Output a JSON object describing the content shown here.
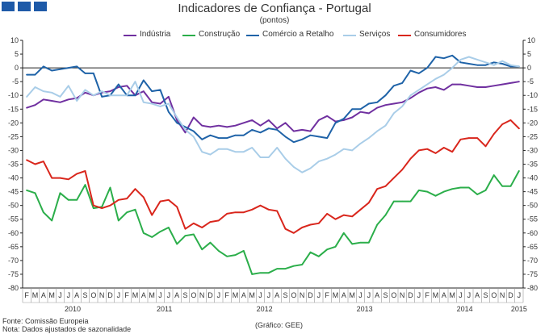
{
  "chart_data": {
    "type": "line",
    "title": "Indicadores de Confiança - Portugal",
    "subtitle": "(pontos)",
    "ylim": [
      -80,
      10
    ],
    "yticks": [
      10,
      5,
      0,
      -5,
      -10,
      -15,
      -20,
      -25,
      -30,
      -35,
      -40,
      -45,
      -50,
      -55,
      -60,
      -65,
      -70,
      -75,
      -80
    ],
    "month_labels": [
      "F",
      "M",
      "A",
      "M",
      "J",
      "J",
      "A",
      "S",
      "O",
      "N",
      "D",
      "J",
      "F",
      "M",
      "A",
      "M",
      "J",
      "J",
      "A",
      "S",
      "O",
      "N",
      "D",
      "J",
      "F",
      "M",
      "A",
      "M",
      "J",
      "J",
      "A",
      "S",
      "O",
      "N",
      "D",
      "J",
      "F",
      "M",
      "A",
      "M",
      "J",
      "J",
      "A",
      "S",
      "O",
      "N",
      "D",
      "J",
      "F",
      "M",
      "A",
      "M",
      "J",
      "J",
      "A",
      "S",
      "O",
      "N",
      "D",
      "J"
    ],
    "year_labels": [
      {
        "label": "2010",
        "index": 5.5
      },
      {
        "label": "2011",
        "index": 16.5
      },
      {
        "label": "2012",
        "index": 28.5
      },
      {
        "label": "2013",
        "index": 40.5
      },
      {
        "label": "2014",
        "index": 52.5
      },
      {
        "label": "2015",
        "index": 59
      }
    ],
    "series": [
      {
        "name": "Indústria",
        "color": "#7030a0",
        "values": [
          -14.5,
          -13.5,
          -11.5,
          -12,
          -12.5,
          -11.5,
          -11,
          -9,
          -10,
          -9,
          -8.5,
          -7,
          -6.5,
          -10,
          -8.5,
          -12.5,
          -13,
          -10.5,
          -19,
          -23.5,
          -18,
          -21,
          -21.5,
          -21,
          -21.5,
          -21,
          -20,
          -19,
          -21,
          -19,
          -22,
          -20,
          -23,
          -22.5,
          -23,
          -19,
          -17.5,
          -19.5,
          -19,
          -18,
          -16,
          -16.5,
          -14.5,
          -13.5,
          -13,
          -12.5,
          -11,
          -9,
          -7.5,
          -7,
          -8,
          -6,
          -6,
          -6.5,
          -7,
          -7,
          -6.5,
          -6,
          -5.5,
          -5
        ]
      },
      {
        "name": "Construção",
        "color": "#2bae4a",
        "values": [
          -44.5,
          -45.5,
          -52.5,
          -55.5,
          -45.5,
          -48,
          -48,
          -42.5,
          -51,
          -50.5,
          -43.5,
          -55.5,
          -52.5,
          -51.5,
          -60,
          -61.5,
          -59.5,
          -58,
          -64,
          -61,
          -60.5,
          -66,
          -63.5,
          -66.5,
          -68.5,
          -68,
          -66.5,
          -75,
          -74.5,
          -74.5,
          -73,
          -73,
          -72,
          -71.5,
          -67,
          -68.5,
          -66,
          -65,
          -60,
          -64,
          -63.5,
          -63.5,
          -57,
          -53.5,
          -48.5,
          -48.5,
          -48.5,
          -44.5,
          -45,
          -46.5,
          -45,
          -44,
          -43.5,
          -43.5,
          -46,
          -44.5,
          -39,
          -43,
          -43,
          -37.5
        ]
      },
      {
        "name": "Comércio a Retalho",
        "color": "#1f63a8",
        "values": [
          -2.5,
          -2.5,
          0.5,
          -1,
          -0.5,
          0,
          0.5,
          -2,
          -2,
          -10.5,
          -10,
          -6,
          -10,
          -10,
          -4.5,
          -8.5,
          -8,
          -16,
          -20,
          -21.5,
          -23,
          -26,
          -24.5,
          -25.5,
          -25.5,
          -24.5,
          -24.5,
          -22.5,
          -23.5,
          -22,
          -22.5,
          -25,
          -27,
          -26,
          -24.5,
          -25,
          -25.5,
          -20,
          -18.5,
          -15,
          -15,
          -13,
          -12.5,
          -10,
          -6.5,
          -5.5,
          -1,
          -2,
          0,
          4,
          3.5,
          4.5,
          2,
          1.5,
          1,
          1,
          2,
          1.5,
          0.5,
          0.5
        ]
      },
      {
        "name": "Serviços",
        "color": "#a9cde8",
        "values": [
          -10.5,
          -7,
          -8.5,
          -9,
          -10.5,
          -6.5,
          -12,
          -8,
          -10,
          -8.5,
          -10,
          -10,
          -10,
          -5,
          -12.5,
          -13,
          -14,
          -13,
          -18,
          -22.5,
          -25,
          -30.5,
          -31.5,
          -29.5,
          -29.5,
          -30.5,
          -30.5,
          -29,
          -32.5,
          -32.5,
          -29,
          -33,
          -36,
          -38,
          -36.5,
          -34,
          -33,
          -31.5,
          -29.5,
          -30,
          -27.5,
          -25.5,
          -23,
          -21,
          -16.5,
          -14,
          -10,
          -8,
          -6,
          -4,
          -2.5,
          0,
          3,
          4,
          3,
          2,
          1,
          2.5,
          1,
          0.5
        ]
      },
      {
        "name": "Consumidores",
        "color": "#d9261c",
        "values": [
          -33.5,
          -35,
          -34,
          -40,
          -40,
          -40.5,
          -38.5,
          -37.5,
          -50,
          -51,
          -50,
          -48,
          -47.5,
          -44,
          -47,
          -53.5,
          -48.5,
          -48,
          -50.5,
          -58.5,
          -56.5,
          -58,
          -56,
          -55.5,
          -53,
          -52.5,
          -52.5,
          -51.5,
          -50,
          -51.5,
          -52,
          -58.5,
          -60,
          -58,
          -57,
          -56.5,
          -53,
          -55,
          -53.5,
          -54,
          -51.5,
          -49,
          -44,
          -43,
          -40,
          -37,
          -33,
          -30,
          -29.5,
          -31,
          -29,
          -30.5,
          -26,
          -25.5,
          -25.5,
          -28.5,
          -24,
          -20.5,
          -19,
          -22
        ]
      }
    ]
  },
  "footer": {
    "source": "Fonte: Comissão Europeia",
    "note": "Nota: Dados ajustados de sazonalidade",
    "credit": "(Gráfico: GEE)"
  }
}
